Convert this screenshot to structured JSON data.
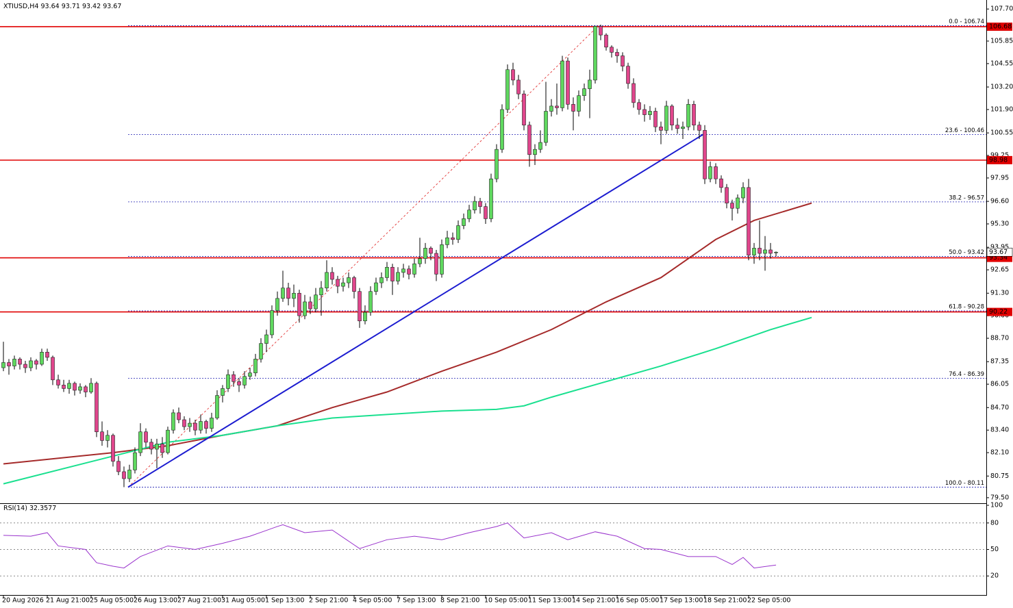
{
  "header": {
    "symbol": "XTIUSD,H4"
  },
  "chart_data": {
    "type": "candlestick",
    "categories": [
      "20 Aug 2026",
      null,
      null,
      null,
      null,
      null,
      null,
      null,
      "21 Aug 21:00",
      null,
      null,
      null,
      null,
      null,
      null,
      null,
      "25 Aug 05:00",
      null,
      null,
      null,
      null,
      null,
      null,
      null,
      "26 Aug 13:00",
      null,
      null,
      null,
      null,
      null,
      null,
      null,
      "27 Aug 21:00",
      null,
      null,
      null,
      null,
      null,
      null,
      null,
      "31 Aug 05:00",
      null,
      null,
      null,
      null,
      null,
      null,
      null,
      "1 Sep 13:00",
      null,
      null,
      null,
      null,
      null,
      null,
      null,
      "2 Sep 21:00",
      null,
      null,
      null,
      null,
      null,
      null,
      null,
      "4 Sep 05:00",
      null,
      null,
      null,
      null,
      null,
      null,
      null,
      "7 Sep 13:00",
      null,
      null,
      null,
      null,
      null,
      null,
      null,
      "8 Sep 21:00",
      null,
      null,
      null,
      null,
      null,
      null,
      null,
      "10 Sep 05:00",
      null,
      null,
      null,
      null,
      null,
      null,
      null,
      "11 Sep 13:00",
      null,
      null,
      null,
      null,
      null,
      null,
      null,
      "14 Sep 21:00",
      null,
      null,
      null,
      null,
      null,
      null,
      null,
      "16 Sep 05:00",
      null,
      null,
      null,
      null,
      null,
      null,
      null,
      "17 Sep 13:00",
      null,
      null,
      null,
      null,
      null,
      null,
      null,
      "18 Sep 21:00",
      null,
      null,
      null,
      null,
      null,
      null,
      null,
      "22 Sep 05:00",
      null,
      null,
      null,
      null,
      null
    ],
    "ohlc": [
      [
        87.0,
        88.5,
        86.8,
        87.3
      ],
      [
        87.3,
        87.5,
        86.6,
        87.1
      ],
      [
        87.1,
        87.7,
        86.9,
        87.5
      ],
      [
        87.5,
        87.6,
        86.9,
        87.2
      ],
      [
        87.2,
        87.4,
        86.7,
        87.0
      ],
      [
        87.0,
        87.6,
        86.8,
        87.4
      ],
      [
        87.4,
        87.5,
        86.9,
        87.2
      ],
      [
        87.2,
        88.1,
        87.1,
        87.9
      ],
      [
        87.9,
        88.1,
        87.4,
        87.6
      ],
      [
        87.6,
        87.7,
        86.0,
        86.3
      ],
      [
        86.3,
        86.6,
        85.8,
        86.0
      ],
      [
        86.0,
        86.3,
        85.6,
        85.8
      ],
      [
        85.8,
        86.3,
        85.5,
        86.1
      ],
      [
        86.1,
        86.2,
        85.4,
        85.7
      ],
      [
        85.7,
        86.1,
        85.5,
        85.9
      ],
      [
        85.9,
        86.0,
        85.3,
        85.6
      ],
      [
        85.6,
        86.4,
        85.5,
        86.1
      ],
      [
        86.1,
        86.2,
        83.0,
        83.3
      ],
      [
        83.3,
        83.9,
        82.5,
        82.8
      ],
      [
        82.8,
        83.4,
        82.4,
        83.1
      ],
      [
        83.1,
        83.2,
        81.3,
        81.6
      ],
      [
        81.6,
        81.9,
        80.8,
        81.0
      ],
      [
        81.0,
        81.3,
        80.11,
        80.6
      ],
      [
        80.6,
        81.4,
        80.4,
        81.1
      ],
      [
        81.1,
        82.4,
        80.9,
        82.1
      ],
      [
        82.1,
        83.8,
        81.9,
        83.3
      ],
      [
        83.3,
        83.5,
        82.4,
        82.7
      ],
      [
        82.7,
        82.9,
        82.0,
        82.3
      ],
      [
        82.3,
        82.9,
        81.2,
        82.6
      ],
      [
        82.6,
        83.0,
        81.8,
        82.1
      ],
      [
        82.1,
        83.6,
        82.0,
        83.4
      ],
      [
        83.4,
        84.6,
        83.2,
        84.4
      ],
      [
        84.4,
        84.7,
        83.8,
        84.0
      ],
      [
        84.0,
        84.2,
        83.4,
        83.6
      ],
      [
        83.6,
        84.1,
        83.3,
        83.8
      ],
      [
        83.8,
        84.0,
        83.1,
        83.4
      ],
      [
        83.4,
        84.3,
        83.2,
        83.9
      ],
      [
        83.9,
        84.0,
        83.2,
        83.5
      ],
      [
        83.5,
        84.4,
        83.3,
        84.1
      ],
      [
        84.1,
        85.7,
        84.0,
        85.4
      ],
      [
        85.4,
        86.0,
        85.0,
        85.8
      ],
      [
        85.8,
        86.9,
        85.6,
        86.6
      ],
      [
        86.6,
        86.8,
        85.9,
        86.2
      ],
      [
        86.2,
        86.4,
        85.6,
        86.0
      ],
      [
        86.0,
        86.8,
        85.8,
        86.5
      ],
      [
        86.5,
        87.0,
        86.3,
        86.7
      ],
      [
        86.7,
        87.8,
        86.5,
        87.5
      ],
      [
        87.5,
        88.7,
        87.3,
        88.4
      ],
      [
        88.4,
        89.2,
        87.9,
        88.9
      ],
      [
        88.9,
        90.6,
        88.7,
        90.3
      ],
      [
        90.3,
        91.4,
        90.0,
        91.0
      ],
      [
        91.0,
        92.6,
        90.8,
        91.6
      ],
      [
        91.6,
        91.9,
        90.6,
        91.0
      ],
      [
        91.0,
        91.8,
        90.5,
        91.3
      ],
      [
        91.3,
        91.5,
        89.6,
        90.0
      ],
      [
        90.0,
        91.2,
        89.8,
        90.8
      ],
      [
        90.8,
        91.1,
        90.1,
        90.4
      ],
      [
        90.4,
        91.6,
        90.2,
        91.2
      ],
      [
        91.2,
        92.0,
        90.0,
        91.6
      ],
      [
        91.6,
        93.2,
        91.4,
        92.5
      ],
      [
        92.5,
        92.8,
        91.8,
        92.1
      ],
      [
        92.1,
        92.3,
        91.3,
        91.7
      ],
      [
        91.7,
        92.2,
        91.4,
        91.9
      ],
      [
        91.9,
        92.5,
        91.6,
        92.2
      ],
      [
        92.2,
        92.3,
        91.0,
        91.4
      ],
      [
        91.4,
        91.6,
        89.3,
        89.7
      ],
      [
        89.7,
        90.6,
        89.5,
        90.2
      ],
      [
        90.2,
        91.7,
        90.0,
        91.4
      ],
      [
        91.4,
        92.2,
        91.2,
        91.9
      ],
      [
        91.9,
        92.5,
        91.6,
        92.2
      ],
      [
        92.2,
        93.1,
        92.0,
        92.8
      ],
      [
        92.8,
        93.0,
        91.2,
        92.0
      ],
      [
        92.0,
        92.8,
        91.8,
        92.5
      ],
      [
        92.5,
        93.0,
        92.2,
        92.7
      ],
      [
        92.7,
        92.9,
        92.1,
        92.4
      ],
      [
        92.4,
        93.3,
        92.2,
        93.0
      ],
      [
        93.0,
        94.5,
        92.8,
        93.3
      ],
      [
        93.3,
        94.2,
        93.0,
        93.9
      ],
      [
        93.9,
        94.0,
        93.2,
        93.6
      ],
      [
        93.6,
        93.8,
        92.0,
        92.4
      ],
      [
        92.4,
        94.4,
        92.2,
        94.1
      ],
      [
        94.1,
        94.9,
        93.9,
        94.5
      ],
      [
        94.5,
        94.8,
        94.1,
        94.4
      ],
      [
        94.4,
        95.5,
        94.2,
        95.2
      ],
      [
        95.2,
        95.9,
        95.0,
        95.6
      ],
      [
        95.6,
        96.4,
        95.4,
        96.1
      ],
      [
        96.1,
        96.9,
        95.9,
        96.6
      ],
      [
        96.6,
        96.8,
        95.9,
        96.3
      ],
      [
        96.3,
        96.5,
        95.3,
        95.6
      ],
      [
        95.6,
        98.2,
        95.4,
        97.9
      ],
      [
        97.9,
        99.9,
        97.7,
        99.6
      ],
      [
        99.6,
        102.2,
        99.4,
        101.9
      ],
      [
        101.9,
        104.5,
        101.7,
        104.2
      ],
      [
        104.2,
        104.6,
        103.3,
        103.6
      ],
      [
        103.6,
        103.9,
        102.5,
        102.8
      ],
      [
        102.8,
        103.0,
        100.7,
        101.0
      ],
      [
        101.0,
        101.2,
        98.6,
        99.3
      ],
      [
        99.3,
        99.9,
        98.7,
        99.6
      ],
      [
        99.6,
        100.7,
        99.4,
        100.0
      ],
      [
        100.0,
        103.5,
        99.8,
        101.8
      ],
      [
        101.8,
        102.5,
        101.5,
        102.1
      ],
      [
        102.1,
        103.4,
        101.6,
        102.0
      ],
      [
        102.0,
        105.0,
        101.8,
        104.7
      ],
      [
        104.7,
        104.9,
        101.9,
        102.2
      ],
      [
        102.2,
        102.6,
        100.7,
        101.8
      ],
      [
        101.8,
        103.0,
        101.5,
        102.7
      ],
      [
        102.7,
        103.4,
        102.4,
        103.1
      ],
      [
        103.1,
        104.2,
        101.4,
        103.6
      ],
      [
        103.6,
        106.74,
        103.4,
        106.7
      ],
      [
        106.7,
        106.8,
        105.9,
        106.2
      ],
      [
        106.2,
        106.3,
        105.3,
        105.5
      ],
      [
        105.5,
        105.6,
        104.9,
        105.2
      ],
      [
        105.2,
        105.4,
        104.6,
        105.0
      ],
      [
        105.0,
        105.2,
        104.1,
        104.4
      ],
      [
        104.4,
        104.6,
        103.1,
        103.4
      ],
      [
        103.4,
        103.7,
        102.0,
        102.3
      ],
      [
        102.3,
        102.5,
        101.6,
        101.9
      ],
      [
        101.9,
        102.2,
        101.2,
        101.6
      ],
      [
        101.6,
        102.1,
        101.3,
        101.8
      ],
      [
        101.8,
        102.0,
        100.6,
        100.9
      ],
      [
        100.9,
        101.2,
        99.9,
        100.7
      ],
      [
        100.7,
        102.4,
        100.5,
        102.1
      ],
      [
        102.1,
        102.2,
        100.7,
        101.0
      ],
      [
        101.0,
        101.4,
        100.5,
        100.8
      ],
      [
        100.8,
        101.2,
        100.2,
        100.9
      ],
      [
        100.9,
        102.5,
        100.7,
        102.2
      ],
      [
        102.2,
        102.4,
        100.7,
        101.0
      ],
      [
        101.0,
        101.2,
        100.2,
        100.7
      ],
      [
        100.7,
        101.0,
        97.6,
        97.9
      ],
      [
        97.9,
        98.9,
        97.7,
        98.6
      ],
      [
        98.6,
        98.8,
        97.6,
        97.9
      ],
      [
        97.9,
        98.1,
        97.1,
        97.4
      ],
      [
        97.4,
        97.6,
        96.2,
        96.5
      ],
      [
        96.5,
        96.7,
        95.5,
        96.2
      ],
      [
        96.2,
        97.0,
        95.9,
        96.8
      ],
      [
        96.8,
        97.7,
        96.5,
        97.4
      ],
      [
        97.4,
        97.9,
        93.2,
        93.5
      ],
      [
        93.5,
        94.2,
        93.0,
        93.9
      ],
      [
        93.9,
        95.5,
        93.2,
        93.6
      ],
      [
        93.6,
        94.6,
        92.6,
        93.8
      ],
      [
        93.8,
        94.2,
        93.3,
        93.6
      ],
      [
        93.64,
        93.71,
        93.42,
        93.67
      ]
    ],
    "up_color": "#5fd85f",
    "down_color": "#e0468c",
    "ylim": [
      79.18,
      108.22
    ],
    "yticks": [
      {
        "value": 107.7,
        "label": "107.70"
      },
      105.85,
      104.55,
      {
        "value": 103.2,
        "label": "103.20"
      },
      {
        "value": 101.9,
        "label": "101.90"
      },
      100.55,
      99.25,
      97.95,
      {
        "value": 96.6,
        "label": "96.60"
      },
      {
        "value": 95.3,
        "label": "95.30"
      },
      93.95,
      92.65,
      {
        "value": 91.3,
        "label": "91.30"
      },
      {
        "value": 90,
        "label": "90.00"
      },
      {
        "value": 88.7,
        "label": "88.70"
      },
      87.35,
      86.05,
      {
        "value": 84.7,
        "label": "84.70"
      },
      {
        "value": 83.4,
        "label": "83.40"
      },
      {
        "value": 82.1,
        "label": "82.10"
      },
      80.75,
      {
        "value": 79.5,
        "label": "79.50"
      }
    ],
    "overlays": [
      {
        "color": "#a52a2a",
        "x": [
          0,
          20,
          30,
          40,
          50,
          60,
          70,
          80,
          90,
          100,
          110,
          120,
          130,
          137,
          147.5
        ],
        "values": [
          81.45,
          82.1,
          82.5,
          83.1,
          83.65,
          84.7,
          85.6,
          86.8,
          87.9,
          89.2,
          90.8,
          92.2,
          94.4,
          95.5,
          96.5
        ]
      },
      {
        "color": "#19e08f",
        "x": [
          0,
          20,
          30,
          40,
          50,
          60,
          70,
          80,
          90,
          95,
          100,
          110,
          120,
          130,
          140,
          147.5
        ],
        "values": [
          80.3,
          81.9,
          82.7,
          83.1,
          83.65,
          84.1,
          84.3,
          84.5,
          84.6,
          84.8,
          85.3,
          86.2,
          87.1,
          88.1,
          89.2,
          89.9
        ]
      }
    ],
    "trendline": {
      "color": "#1c1cd0",
      "x": [
        22.75,
        127.9
      ],
      "values": [
        80.11,
        100.5
      ]
    },
    "fib": {
      "color": "#e02020",
      "level_color": "#1c1cb0",
      "x": [
        22.75,
        108.6
      ],
      "values": [
        80.11,
        106.74
      ],
      "levels": [
        {
          "value": 106.74,
          "label": "0.0 - 106.74"
        },
        {
          "value": 100.46,
          "label": "23.6 - 100.46"
        },
        {
          "value": 96.57,
          "label": "38.2 - 96.57"
        },
        {
          "value": 93.42,
          "label": "50.0 - 93.42"
        },
        {
          "value": 90.28,
          "label": "61.8 - 90.28"
        },
        {
          "value": 86.39,
          "label": "76.4 - 86.39"
        },
        {
          "value": 80.11,
          "label": "100.0 - 80.11"
        }
      ]
    },
    "hline_color": "#e00000",
    "hlines": [
      106.68,
      98.98,
      93.34,
      90.22
    ],
    "rsi": {
      "label": "RSI(14)",
      "color": "#9932cc",
      "ylim": [
        0,
        100
      ],
      "yticks": [
        100,
        80,
        50,
        20
      ],
      "x": [
        0,
        5,
        8,
        10,
        15,
        17,
        20,
        22,
        25,
        30,
        35,
        40,
        45,
        50,
        51,
        55,
        60,
        65,
        70,
        75,
        80,
        85,
        90,
        92,
        95,
        100,
        103,
        108,
        112,
        117,
        120,
        125,
        130,
        133,
        135,
        137,
        141
      ],
      "values": [
        66,
        65,
        69,
        54,
        50,
        35,
        31,
        29,
        42,
        54,
        50,
        57,
        65,
        76,
        78,
        69,
        72,
        51,
        61,
        65,
        61,
        69,
        76,
        80,
        63,
        69,
        61,
        70,
        65,
        51,
        50,
        42,
        42,
        33,
        41,
        29,
        32.3577
      ]
    }
  }
}
